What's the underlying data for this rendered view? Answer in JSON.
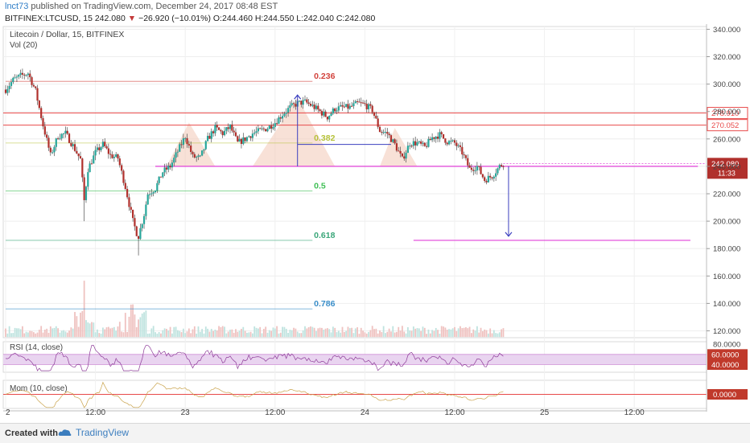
{
  "header": {
    "author": "lnct73",
    "published_text": "published on TradingView.com, December 24, 2017 08:48 EST",
    "symbol_line_prefix": "BITFINEX:LTCUSD, 15",
    "last": "242.080",
    "change": "−26.920 (−10.01%)",
    "ohlc": "O:244.460 H:244.550 L:242.040 C:242.080"
  },
  "chart_title": "Litecoin / Dollar, 15, BITFINEX",
  "vol_label": "Vol (20)",
  "footer": {
    "created_with": "Created with",
    "brand": "TradingView"
  },
  "colors": {
    "up": "#26a69a",
    "down": "#b0302c",
    "hline": "#e84a4a",
    "magenta": "#e040d8",
    "arrow": "#3b3fbf",
    "pattern": "#f3c9b7",
    "rsi": "#8e3c99",
    "mom": "#c9a24a"
  },
  "chart_data": [
    {
      "type": "candlestick",
      "title": "Litecoin / Dollar, 15, BITFINEX",
      "y_ticks": [
        120,
        140,
        160,
        180,
        200,
        220,
        240,
        260,
        280,
        300,
        320,
        340
      ],
      "ylim": [
        115,
        342
      ],
      "x_ticks": [
        {
          "label": "2",
          "t": 0
        },
        {
          "label": "12:00",
          "t": 12
        },
        {
          "label": "23",
          "t": 24
        },
        {
          "label": "12:00",
          "t": 36
        },
        {
          "label": "24",
          "t": 48
        },
        {
          "label": "12:00",
          "t": 60
        },
        {
          "label": "25",
          "t": 72
        },
        {
          "label": "12:00",
          "t": 84
        }
      ],
      "price_path": [
        [
          0,
          296
        ],
        [
          1,
          303
        ],
        [
          2,
          306
        ],
        [
          3,
          308
        ],
        [
          4,
          295
        ],
        [
          5,
          270
        ],
        [
          6,
          248
        ],
        [
          7,
          262
        ],
        [
          8,
          264
        ],
        [
          9,
          255
        ],
        [
          10,
          245
        ],
        [
          10.5,
          215
        ],
        [
          11,
          238
        ],
        [
          12,
          250
        ],
        [
          13,
          256
        ],
        [
          14,
          248
        ],
        [
          15,
          246
        ],
        [
          16,
          225
        ],
        [
          17,
          200
        ],
        [
          17.7,
          188
        ],
        [
          18.5,
          205
        ],
        [
          19,
          220
        ],
        [
          20,
          224
        ],
        [
          21,
          236
        ],
        [
          22,
          240
        ],
        [
          23,
          251
        ],
        [
          24,
          262
        ],
        [
          25,
          247
        ],
        [
          26,
          246
        ],
        [
          27,
          260
        ],
        [
          28,
          268
        ],
        [
          29,
          264
        ],
        [
          30,
          269
        ],
        [
          31,
          257
        ],
        [
          32,
          260
        ],
        [
          33,
          264
        ],
        [
          34,
          266
        ],
        [
          35,
          268
        ],
        [
          36,
          272
        ],
        [
          37,
          278
        ],
        [
          38,
          283
        ],
        [
          39,
          286
        ],
        [
          40,
          287
        ],
        [
          41,
          284
        ],
        [
          42,
          280
        ],
        [
          43,
          276
        ],
        [
          44,
          282
        ],
        [
          45,
          283
        ],
        [
          46,
          283
        ],
        [
          47,
          286
        ],
        [
          48,
          285
        ],
        [
          49,
          281
        ],
        [
          50,
          266
        ],
        [
          51,
          264
        ],
        [
          52,
          256
        ],
        [
          53,
          245
        ],
        [
          54,
          257
        ],
        [
          55,
          257
        ],
        [
          56,
          254
        ],
        [
          57,
          261
        ],
        [
          58,
          263
        ],
        [
          59,
          258
        ],
        [
          60,
          257
        ],
        [
          61,
          250
        ],
        [
          62,
          238
        ],
        [
          63,
          240
        ],
        [
          64,
          230
        ],
        [
          65,
          233
        ],
        [
          66,
          240
        ],
        [
          66.5,
          242
        ]
      ],
      "fibonacci": [
        {
          "label": "0.236",
          "value": 302,
          "color": "#d2433d"
        },
        {
          "label": "0.382",
          "value": 257,
          "color": "#b6c23a"
        },
        {
          "label": "0.5",
          "value": 222,
          "color": "#3fbf55"
        },
        {
          "label": "0.618",
          "value": 186,
          "color": "#3aa679"
        },
        {
          "label": "0.786",
          "value": 136,
          "color": "#3a8ec9"
        }
      ],
      "horizontal_lines": [
        {
          "value": 278.91,
          "label": "278.910"
        },
        {
          "value": 270.052,
          "label": "270.052"
        }
      ],
      "neckline": 240,
      "target": 186,
      "last_price": {
        "value": 242.08,
        "label": "242.080",
        "countdown": "11:33"
      },
      "head_and_shoulders": {
        "points": [
          [
            15.5,
            240
          ],
          [
            21.5,
            240
          ],
          [
            24.5,
            272
          ],
          [
            28,
            240
          ],
          [
            33,
            240
          ],
          [
            39,
            290
          ],
          [
            44,
            240
          ],
          [
            50,
            240
          ],
          [
            52,
            268
          ],
          [
            55,
            240
          ]
        ]
      },
      "drawn_move": {
        "from": 240,
        "to": 292,
        "t": 39
      }
    },
    {
      "type": "line",
      "name": "RSI (14, close)",
      "bands": [
        60,
        40
      ],
      "band_labels": [
        "60.0000",
        "40.0000"
      ],
      "y_tick": "80.0000",
      "ylim": [
        25,
        85
      ]
    },
    {
      "type": "line",
      "name": "Mom (10, close)",
      "zero_label": "0.0000",
      "ylim": [
        -30,
        30
      ]
    }
  ]
}
